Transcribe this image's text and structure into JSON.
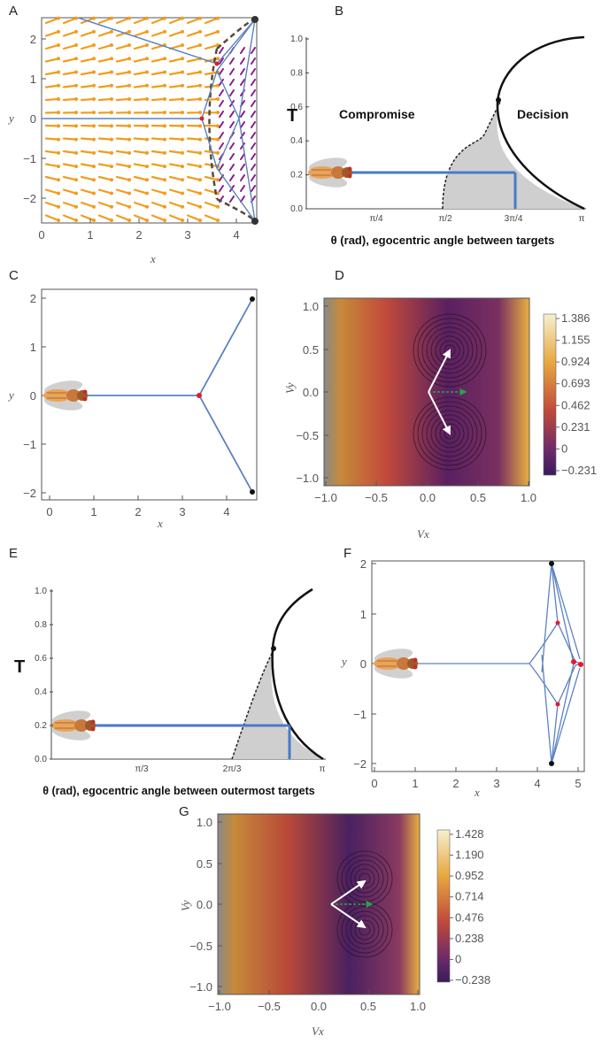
{
  "panels": {
    "a": {
      "label": "A"
    },
    "b": {
      "label": "B"
    },
    "c": {
      "label": "C"
    },
    "d": {
      "label": "D"
    },
    "e": {
      "label": "E"
    },
    "f": {
      "label": "F"
    },
    "g": {
      "label": "G"
    }
  },
  "colors": {
    "accent_blue": "#5a82c0",
    "arrow_orange": "#f39c1a",
    "arrow_purple": "#8b1a8c",
    "bifurcation_red": "#e21b2a",
    "shade_gray": "#cfcfcf",
    "plot_blue": "#4a79c9"
  },
  "chart_data": [
    {
      "id": "A",
      "type": "line",
      "xlabel": "x",
      "ylabel": "y",
      "xlim": [
        0,
        4.4
      ],
      "ylim": [
        -2.6,
        2.6
      ],
      "xticks": [
        "0",
        "1",
        "2",
        "3",
        "4"
      ],
      "yticks": [
        "2",
        "1",
        "0",
        "−1",
        "−2"
      ],
      "targets": [
        [
          4.33,
          2.5
        ],
        [
          4.33,
          -2.5
        ]
      ]
    },
    {
      "id": "B",
      "type": "area",
      "xlabel": "θ (rad), egocentric angle between targets",
      "ylabel": "T",
      "xticks": [
        "π/4",
        "π/2",
        "3π/4",
        "π"
      ],
      "yticks": [
        "0.0",
        "0.2",
        "0.4",
        "0.6",
        "0.8",
        "1.0"
      ],
      "ylim": [
        0,
        1
      ],
      "annotations": [
        "Compromise",
        "Decision"
      ],
      "operating_point": {
        "theta": 2.35,
        "T": 0.21
      }
    },
    {
      "id": "C",
      "type": "line",
      "xlabel": "x",
      "ylabel": "y",
      "xticks": [
        "0",
        "1",
        "2",
        "3",
        "4"
      ],
      "yticks": [
        "2",
        "1",
        "0",
        "−1",
        "−2"
      ],
      "bifurcation_point": [
        3.2,
        0
      ],
      "targets": [
        [
          4.33,
          2.5
        ],
        [
          4.33,
          -2.5
        ]
      ]
    },
    {
      "id": "D",
      "type": "heatmap",
      "xlabel": "Vx",
      "ylabel": "Vy",
      "xticks": [
        "−1.0",
        "−0.5",
        "0.0",
        "0.5",
        "1.0"
      ],
      "yticks": [
        "1.0",
        "0.5",
        "0.0",
        "−0.5",
        "−1.0"
      ],
      "colorbar": [
        "1.386",
        "1.155",
        "0.924",
        "0.693",
        "0.462",
        "0.231",
        "0",
        "−0.231"
      ],
      "minima": [
        [
          0.2,
          0.5
        ],
        [
          0.2,
          -0.5
        ]
      ]
    },
    {
      "id": "E",
      "type": "area",
      "xlabel": "θ (rad), egocentric angle between outermost targets",
      "ylabel": "T",
      "xticks": [
        "π/3",
        "2π/3",
        "π"
      ],
      "yticks": [
        "0.0",
        "0.2",
        "0.4",
        "0.6",
        "0.8",
        "1.0"
      ],
      "ylim": [
        0,
        1
      ],
      "operating_point": {
        "theta": 2.8,
        "T": 0.2
      }
    },
    {
      "id": "F",
      "type": "line",
      "xlabel": "x",
      "ylabel": "y",
      "xticks": [
        "0",
        "1",
        "2",
        "3",
        "4",
        "5"
      ],
      "yticks": [
        "2",
        "1",
        "0",
        "−1",
        "−2"
      ],
      "targets": [
        [
          4.33,
          2.5
        ],
        [
          4.33,
          -2.5
        ],
        [
          5,
          0
        ]
      ]
    },
    {
      "id": "G",
      "type": "heatmap",
      "xlabel": "Vx",
      "ylabel": "Vy",
      "xticks": [
        "−1.0",
        "−0.5",
        "0.0",
        "0.5",
        "1.0"
      ],
      "yticks": [
        "1.0",
        "0.5",
        "0.0",
        "−0.5",
        "−1.0"
      ],
      "colorbar": [
        "1.428",
        "1.190",
        "0.952",
        "0.714",
        "0.476",
        "0.238",
        "0",
        "−0.238"
      ],
      "minima": [
        [
          0.4,
          0.3
        ],
        [
          0.4,
          -0.3
        ]
      ]
    }
  ]
}
